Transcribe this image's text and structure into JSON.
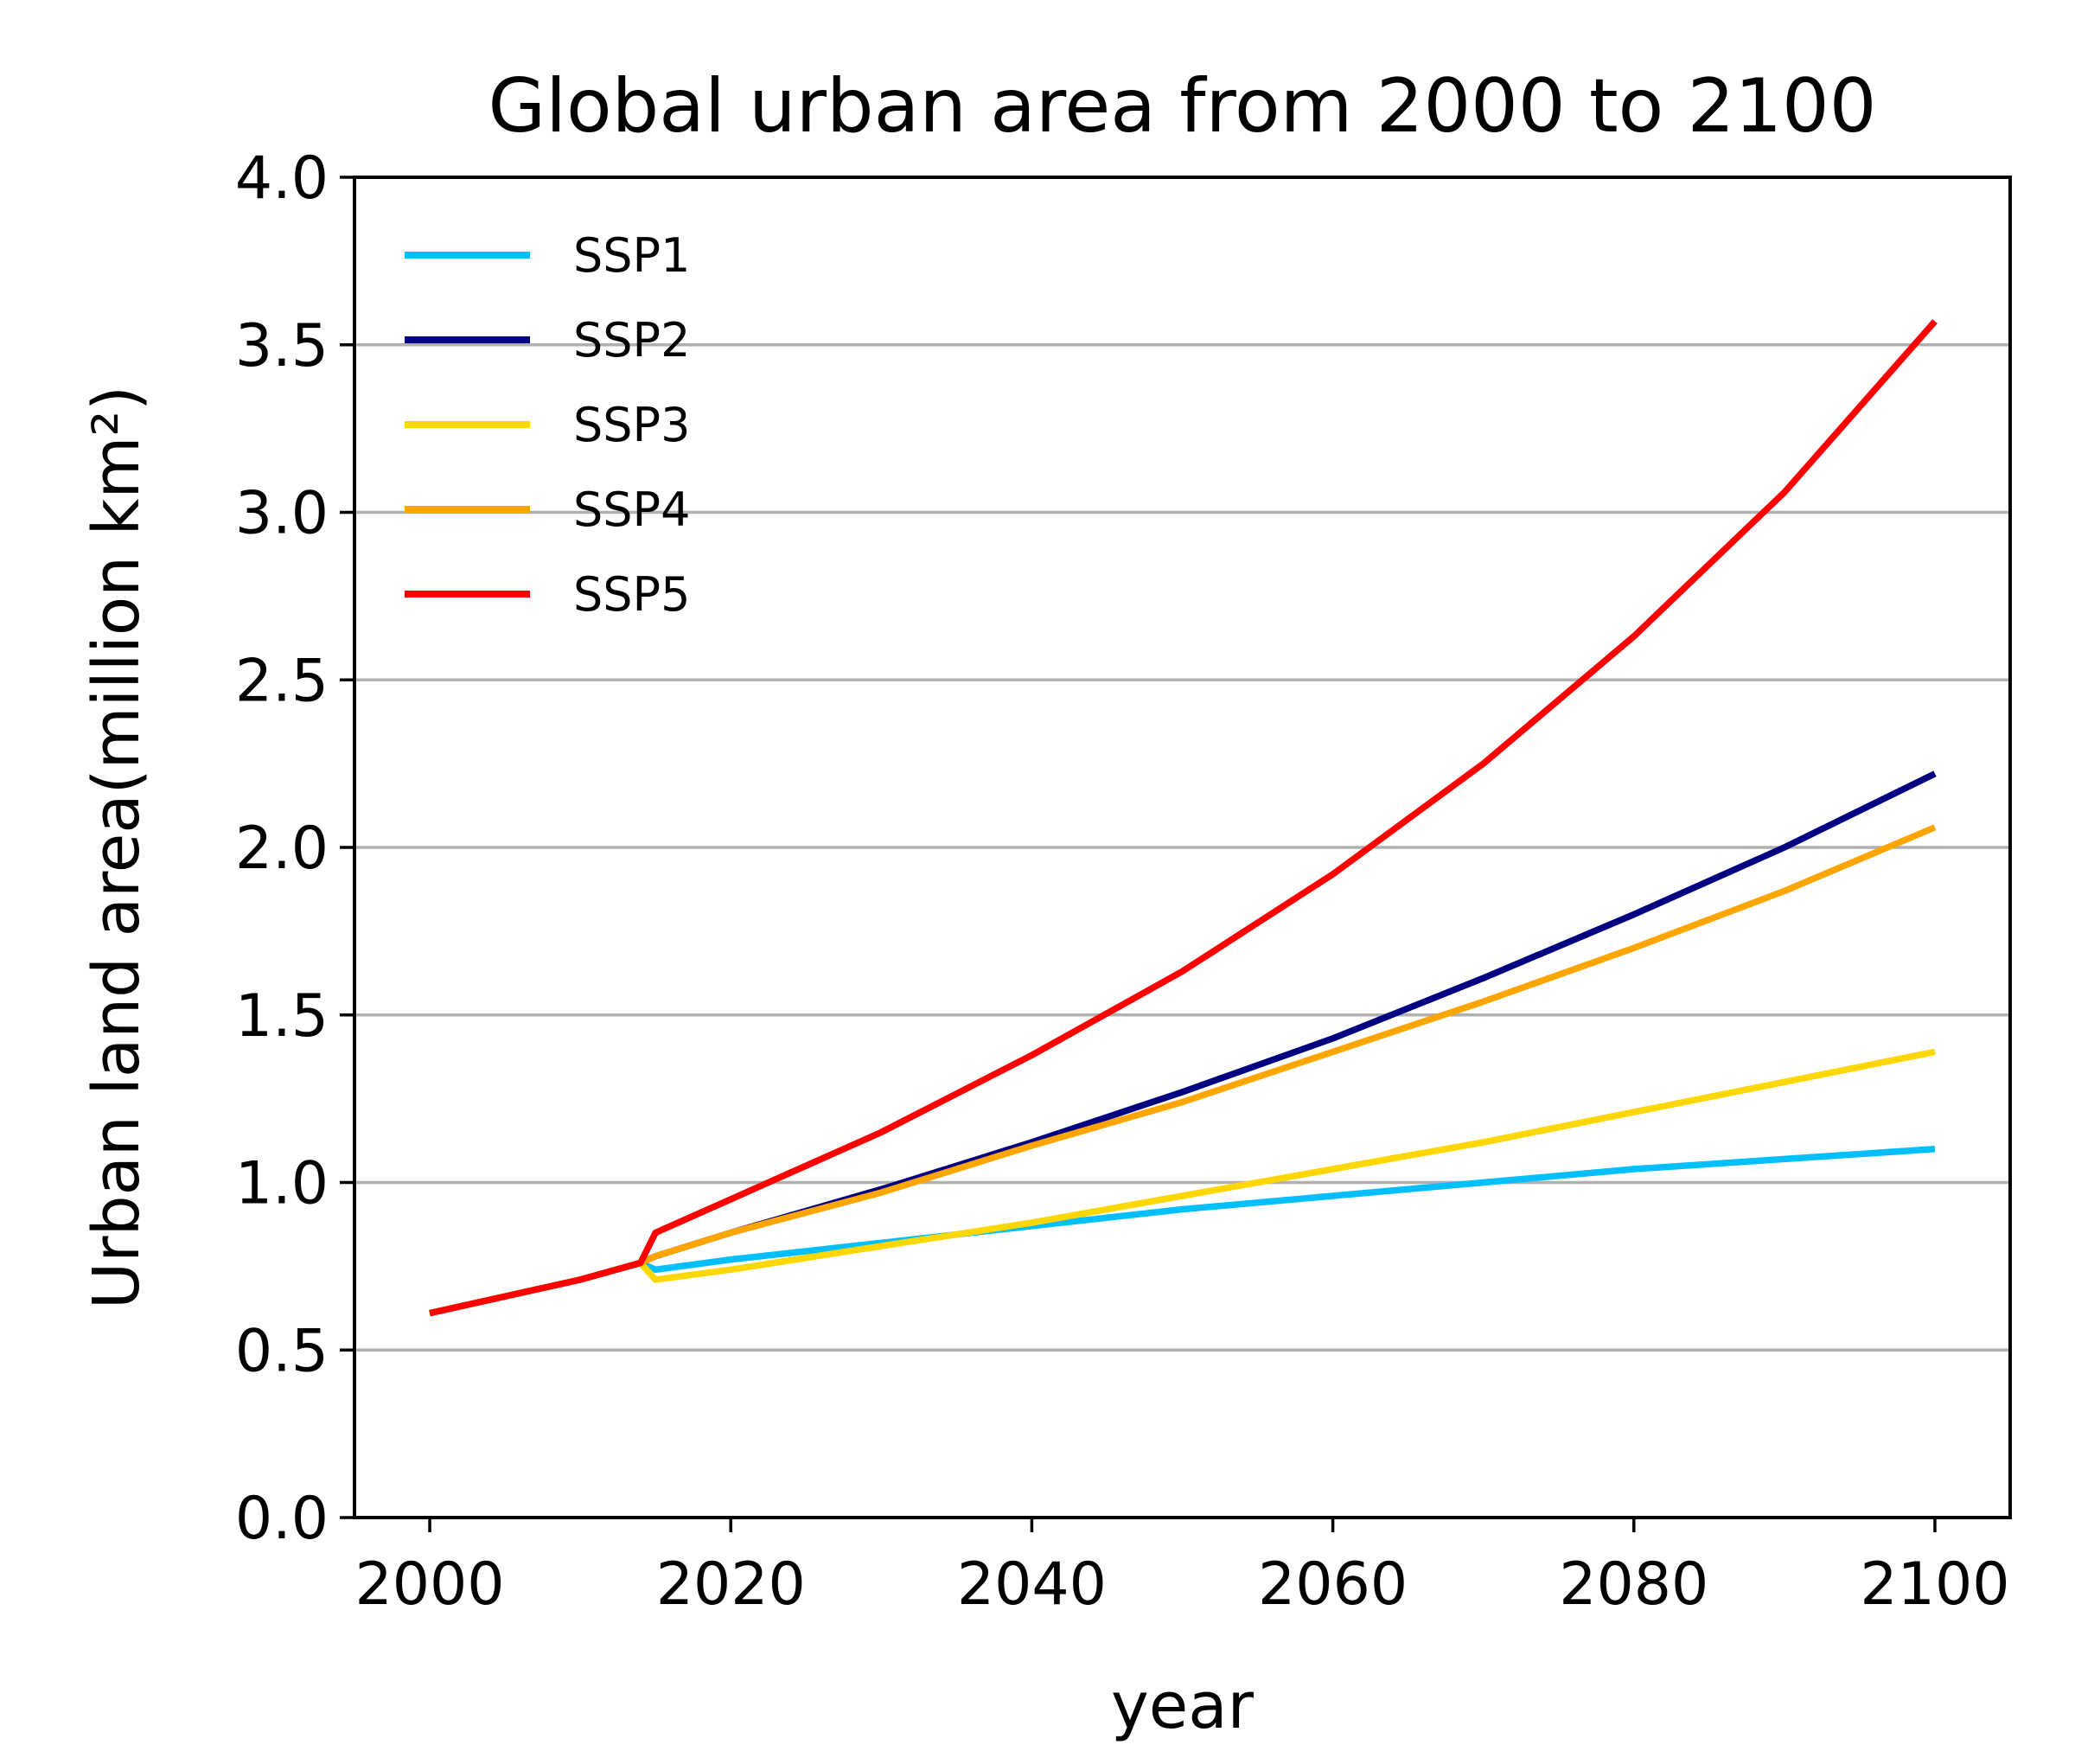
{
  "chart_data": {
    "type": "line",
    "title": "Global urban area from 2000 to 2100",
    "xlabel": "year",
    "ylabel": "Urban land area(million km²)",
    "xlim": [
      1995,
      2105
    ],
    "ylim": [
      0,
      4
    ],
    "xticks": [
      2000,
      2020,
      2040,
      2060,
      2080,
      2100
    ],
    "xtick_labels": [
      "2000",
      "2020",
      "2040",
      "2060",
      "2080",
      "2100"
    ],
    "yticks": [
      0,
      0.5,
      1,
      1.5,
      2,
      2.5,
      3,
      3.5,
      4
    ],
    "ytick_labels": [
      "0.0",
      "0.5",
      "1.0",
      "1.5",
      "2.0",
      "2.5",
      "3.0",
      "3.5",
      "4.0"
    ],
    "grid": "horizontal",
    "legend_position": "top-left",
    "series": [
      {
        "name": "SSP1",
        "color": "#00bfff",
        "points": [
          [
            2000,
            0.61
          ],
          [
            2010,
            0.71
          ],
          [
            2014,
            0.76
          ],
          [
            2015,
            0.74
          ],
          [
            2020,
            0.77
          ],
          [
            2030,
            0.82
          ],
          [
            2040,
            0.87
          ],
          [
            2050,
            0.92
          ],
          [
            2060,
            0.96
          ],
          [
            2070,
            1.0
          ],
          [
            2080,
            1.04
          ],
          [
            2090,
            1.07
          ],
          [
            2100,
            1.1
          ]
        ]
      },
      {
        "name": "SSP2",
        "color": "#000080",
        "points": [
          [
            2000,
            0.61
          ],
          [
            2010,
            0.71
          ],
          [
            2014,
            0.76
          ],
          [
            2015,
            0.78
          ],
          [
            2020,
            0.85
          ],
          [
            2030,
            0.98
          ],
          [
            2040,
            1.12
          ],
          [
            2050,
            1.27
          ],
          [
            2060,
            1.43
          ],
          [
            2070,
            1.61
          ],
          [
            2080,
            1.8
          ],
          [
            2090,
            2.0
          ],
          [
            2100,
            2.22
          ]
        ]
      },
      {
        "name": "SSP3",
        "color": "#ffd700",
        "points": [
          [
            2000,
            0.61
          ],
          [
            2010,
            0.71
          ],
          [
            2014,
            0.76
          ],
          [
            2015,
            0.71
          ],
          [
            2020,
            0.74
          ],
          [
            2030,
            0.81
          ],
          [
            2040,
            0.88
          ],
          [
            2050,
            0.96
          ],
          [
            2060,
            1.04
          ],
          [
            2070,
            1.12
          ],
          [
            2080,
            1.21
          ],
          [
            2090,
            1.3
          ],
          [
            2100,
            1.39
          ]
        ]
      },
      {
        "name": "SSP4",
        "color": "#ffa500",
        "points": [
          [
            2000,
            0.61
          ],
          [
            2010,
            0.71
          ],
          [
            2014,
            0.76
          ],
          [
            2015,
            0.78
          ],
          [
            2020,
            0.85
          ],
          [
            2030,
            0.97
          ],
          [
            2040,
            1.11
          ],
          [
            2050,
            1.24
          ],
          [
            2060,
            1.39
          ],
          [
            2070,
            1.54
          ],
          [
            2080,
            1.7
          ],
          [
            2090,
            1.87
          ],
          [
            2100,
            2.06
          ]
        ]
      },
      {
        "name": "SSP5",
        "color": "#ff0000",
        "points": [
          [
            2000,
            0.61
          ],
          [
            2010,
            0.71
          ],
          [
            2014,
            0.76
          ],
          [
            2015,
            0.85
          ],
          [
            2020,
            0.95
          ],
          [
            2030,
            1.15
          ],
          [
            2040,
            1.38
          ],
          [
            2050,
            1.63
          ],
          [
            2060,
            1.92
          ],
          [
            2070,
            2.25
          ],
          [
            2080,
            2.63
          ],
          [
            2090,
            3.06
          ],
          [
            2100,
            3.57
          ]
        ]
      }
    ]
  }
}
